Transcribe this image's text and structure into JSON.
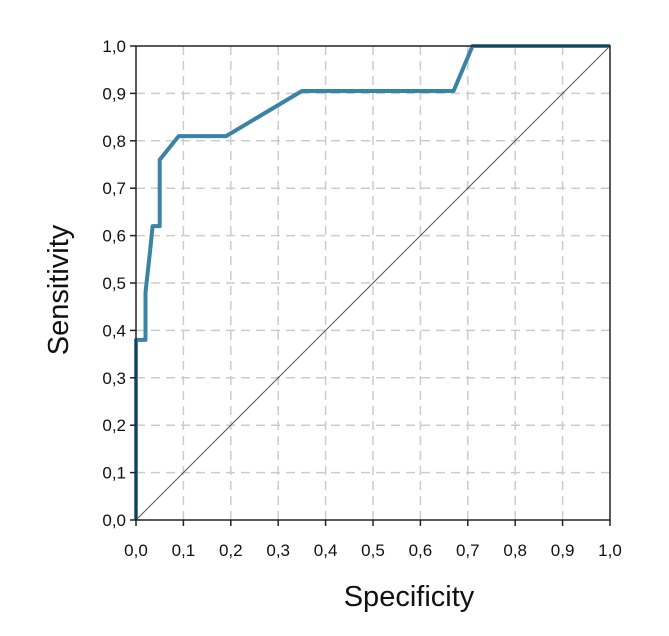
{
  "chart_data": {
    "type": "line",
    "title": "",
    "xlabel": "Specificity",
    "ylabel": "Sensitivity",
    "xlim": [
      0,
      1
    ],
    "ylim": [
      0,
      1
    ],
    "grid": true,
    "x_ticks": [
      "0,0",
      "0,1",
      "0,2",
      "0,3",
      "0,4",
      "0,5",
      "0,6",
      "0,7",
      "0,8",
      "0,9",
      "1,0"
    ],
    "y_ticks": [
      "0,0",
      "0,1",
      "0,2",
      "0,3",
      "0,4",
      "0,5",
      "0,6",
      "0,7",
      "0,8",
      "0,9",
      "1,0"
    ],
    "colors": {
      "roc": "#3a83a6",
      "reference": "#555555",
      "grid": "#cccccc",
      "frame": "#222222"
    },
    "series": [
      {
        "x": [
          0,
          0,
          0.02,
          0.02,
          0.03,
          0.035,
          0.04,
          0.05,
          0.05,
          0.09,
          0.19,
          0.35,
          0.67,
          0.71,
          1.0
        ],
        "y": [
          0,
          0.38,
          0.38,
          0.48,
          0.57,
          0.62,
          0.62,
          0.62,
          0.76,
          0.81,
          0.81,
          0.905,
          0.905,
          1.0,
          1.0
        ]
      },
      {
        "x": [
          0,
          1
        ],
        "y": [
          0,
          1
        ]
      }
    ]
  }
}
